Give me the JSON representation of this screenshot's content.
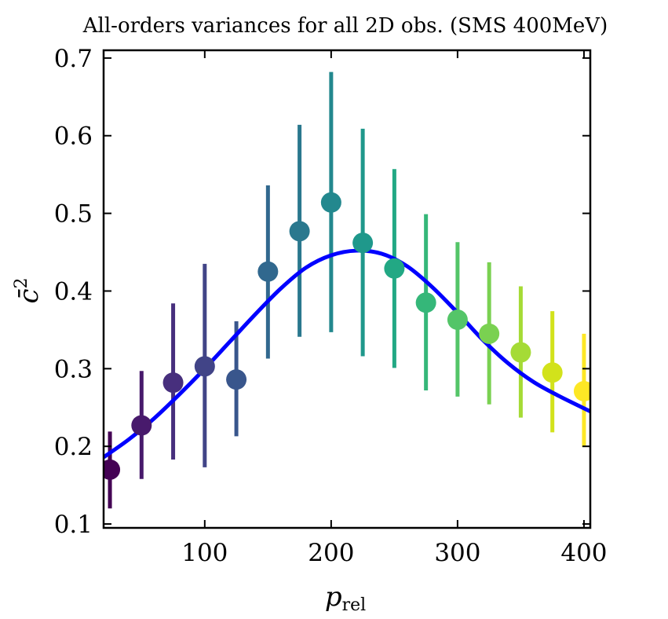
{
  "chart_data": {
    "type": "scatter",
    "title": "All-orders variances for all 2D obs. (SMS 400MeV)",
    "xlabel": {
      "main": "p",
      "sub": "rel"
    },
    "ylabel": {
      "main": "c̄",
      "sup": "2"
    },
    "xlim": [
      20,
      405
    ],
    "ylim": [
      0.095,
      0.71
    ],
    "xticks": [
      100,
      200,
      300,
      400
    ],
    "xtick_labels": [
      "100",
      "200",
      "300",
      "400"
    ],
    "yticks": [
      0.1,
      0.2,
      0.3,
      0.4,
      0.5,
      0.6,
      0.7
    ],
    "ytick_labels": [
      "0.1",
      "0.2",
      "0.3",
      "0.4",
      "0.5",
      "0.6",
      "0.7"
    ],
    "grid": false,
    "series": [
      {
        "kind": "errorbar",
        "x": [
          25,
          50,
          75,
          100,
          125,
          150,
          175,
          200,
          225,
          250,
          275,
          300,
          325,
          350,
          375,
          400
        ],
        "y": [
          0.17,
          0.227,
          0.282,
          0.303,
          0.286,
          0.425,
          0.477,
          0.514,
          0.462,
          0.429,
          0.385,
          0.363,
          0.345,
          0.321,
          0.295,
          0.271
        ],
        "yerr_low": [
          0.12,
          0.158,
          0.183,
          0.173,
          0.213,
          0.313,
          0.341,
          0.347,
          0.316,
          0.301,
          0.272,
          0.264,
          0.254,
          0.237,
          0.218,
          0.199
        ],
        "yerr_high": [
          0.219,
          0.297,
          0.384,
          0.435,
          0.361,
          0.536,
          0.614,
          0.682,
          0.609,
          0.557,
          0.499,
          0.463,
          0.437,
          0.406,
          0.374,
          0.345
        ],
        "colors": [
          "#440154",
          "#481a6c",
          "#472f7d",
          "#414487",
          "#39568c",
          "#31688e",
          "#2a788e",
          "#23888e",
          "#1f988b",
          "#22a884",
          "#35b779",
          "#54c568",
          "#7ad151",
          "#a5db36",
          "#d2e21b",
          "#fde725"
        ]
      },
      {
        "kind": "line",
        "color": "#0000ff",
        "x": [
          20,
          40,
          60,
          80,
          100,
          120,
          140,
          160,
          180,
          200,
          220,
          240,
          260,
          280,
          300,
          320,
          340,
          360,
          380,
          405
        ],
        "y": [
          0.186,
          0.209,
          0.236,
          0.267,
          0.3,
          0.335,
          0.37,
          0.403,
          0.43,
          0.446,
          0.452,
          0.448,
          0.432,
          0.405,
          0.372,
          0.337,
          0.307,
          0.283,
          0.265,
          0.245
        ]
      }
    ]
  }
}
